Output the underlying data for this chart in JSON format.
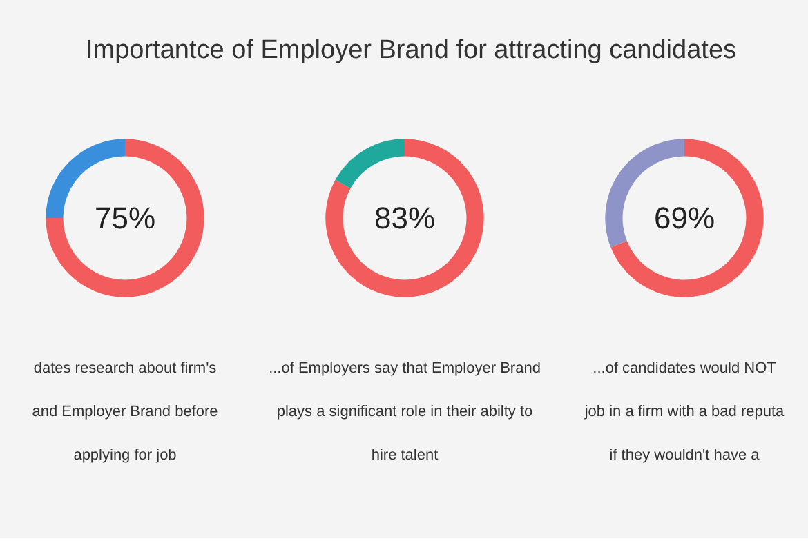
{
  "chart_data": [
    {
      "type": "donut",
      "title": "Importantce of Employer Brand for attracting candidates",
      "categories": [
        null,
        null
      ],
      "values": [
        75,
        25
      ],
      "colors": [
        "#f25c5c",
        "#3a8fdc"
      ],
      "value_labels": [
        "75%",
        null
      ],
      "annotations": [
        "dates research about firm's",
        "and Employer Brand before",
        "applying for job"
      ]
    },
    {
      "type": "donut",
      "categories": [
        null,
        null
      ],
      "values": [
        83,
        17
      ],
      "colors": [
        "#f25c5c",
        "#1fa89c"
      ],
      "value_labels": [
        "83%",
        null
      ],
      "annotations": [
        "...of Employers say that Employer Brand",
        "plays a significant role in their abilty to",
        "hire talent"
      ]
    },
    {
      "type": "donut",
      "categories": [
        null,
        null
      ],
      "values": [
        69,
        31
      ],
      "colors": [
        "#f25c5c",
        "#8f94c8"
      ],
      "value_labels": [
        "69%",
        null
      ],
      "annotations": [
        "...of candidates would NOT",
        "job in a firm with a bad reputa",
        "if they wouldn't have a"
      ]
    }
  ]
}
